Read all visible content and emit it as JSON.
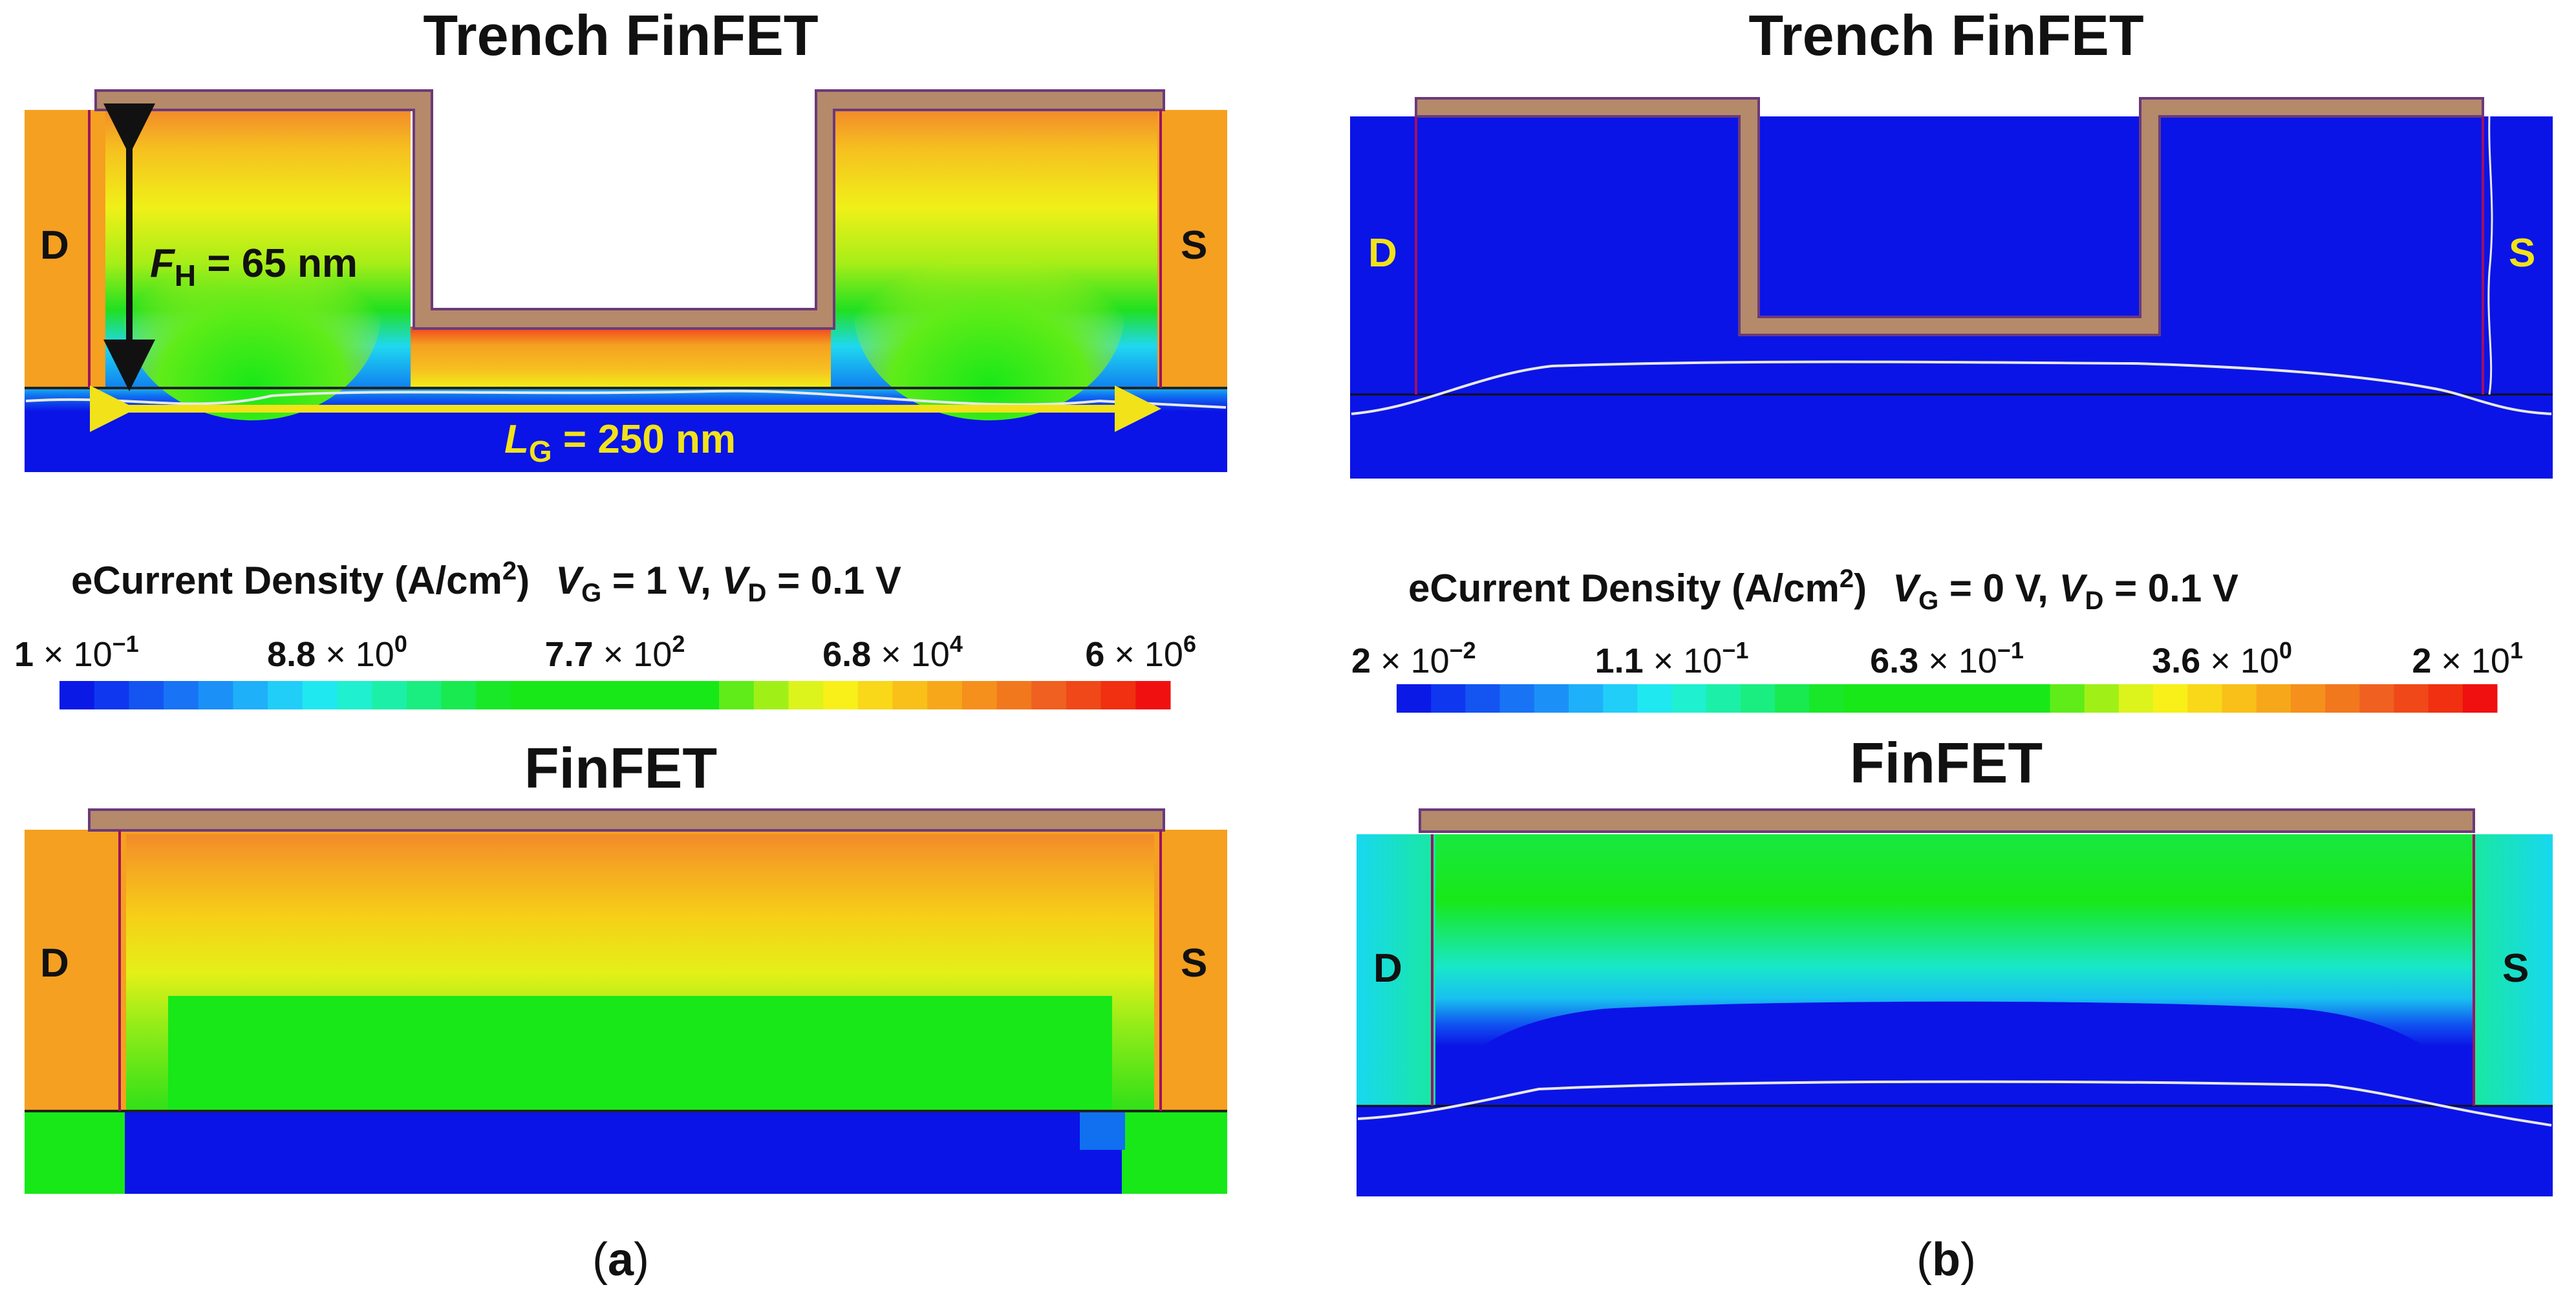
{
  "panel_a": {
    "trench_title": "Trench FinFET",
    "finfet_title": "FinFET",
    "drain": "D",
    "source": "S",
    "fin_height": {
      "symbol": "F",
      "sub": "H",
      "value": " = 65 nm"
    },
    "gate_length": {
      "symbol": "L",
      "sub": "G",
      "value": " = 250 nm"
    },
    "colorbar": {
      "quantity": "eCurrent Density (A/cm",
      "unit_exp": "2",
      "close": ")",
      "vg_sym": "V",
      "vg_sub": "G",
      "vg_val": " = 1 V, ",
      "vd_sym": "V",
      "vd_sub": "D",
      "vd_val": " = 0.1 V",
      "ticks": [
        {
          "mant": "1",
          "exp": "−1"
        },
        {
          "mant": "8.8",
          "exp": "0"
        },
        {
          "mant": "7.7",
          "exp": "2"
        },
        {
          "mant": "6.8",
          "exp": "4"
        },
        {
          "mant": "6",
          "exp": "6"
        }
      ]
    },
    "label": "a"
  },
  "panel_b": {
    "trench_title": "Trench FinFET",
    "finfet_title": "FinFET",
    "drain": "D",
    "source": "S",
    "colorbar": {
      "quantity": "eCurrent Density (A/cm",
      "unit_exp": "2",
      "close": ")",
      "vg_sym": "V",
      "vg_sub": "G",
      "vg_val": " = 0 V, ",
      "vd_sym": "V",
      "vd_sub": "D",
      "vd_val": " = 0.1 V",
      "ticks": [
        {
          "mant": "2",
          "exp": "−2"
        },
        {
          "mant": "1.1",
          "exp": "−1"
        },
        {
          "mant": "6.3",
          "exp": "−1"
        },
        {
          "mant": "3.6",
          "exp": "0"
        },
        {
          "mant": "2",
          "exp": "1"
        }
      ]
    },
    "label": "b"
  },
  "times_symbol": "×",
  "colors": {
    "gate": "#b48a6a",
    "gate_edge": "#6b3a7a",
    "low": "#0a14e6",
    "cyan": "#18d8f0",
    "green": "#18e018",
    "yellow": "#f0f018",
    "orange": "#f5a020",
    "red": "#f01010",
    "annotation_yellow": "#f2e21a"
  },
  "colorbar_colors": [
    "#0b19e6",
    "#0f37f0",
    "#1455f2",
    "#1873f5",
    "#1b91f7",
    "#1eb0f8",
    "#20cef8",
    "#20e8f0",
    "#1ef0d0",
    "#1cf0a8",
    "#1aee80",
    "#18ea50",
    "#18e828",
    "#18e818",
    "#18e818",
    "#18e818",
    "#18e818",
    "#18e818",
    "#18e818",
    "#60ec18",
    "#a0f018",
    "#dcf41c",
    "#f8f018",
    "#f8d818",
    "#f8c018",
    "#f6a81a",
    "#f5901c",
    "#f2781e",
    "#f06020",
    "#f04818",
    "#f03010",
    "#f01010"
  ]
}
